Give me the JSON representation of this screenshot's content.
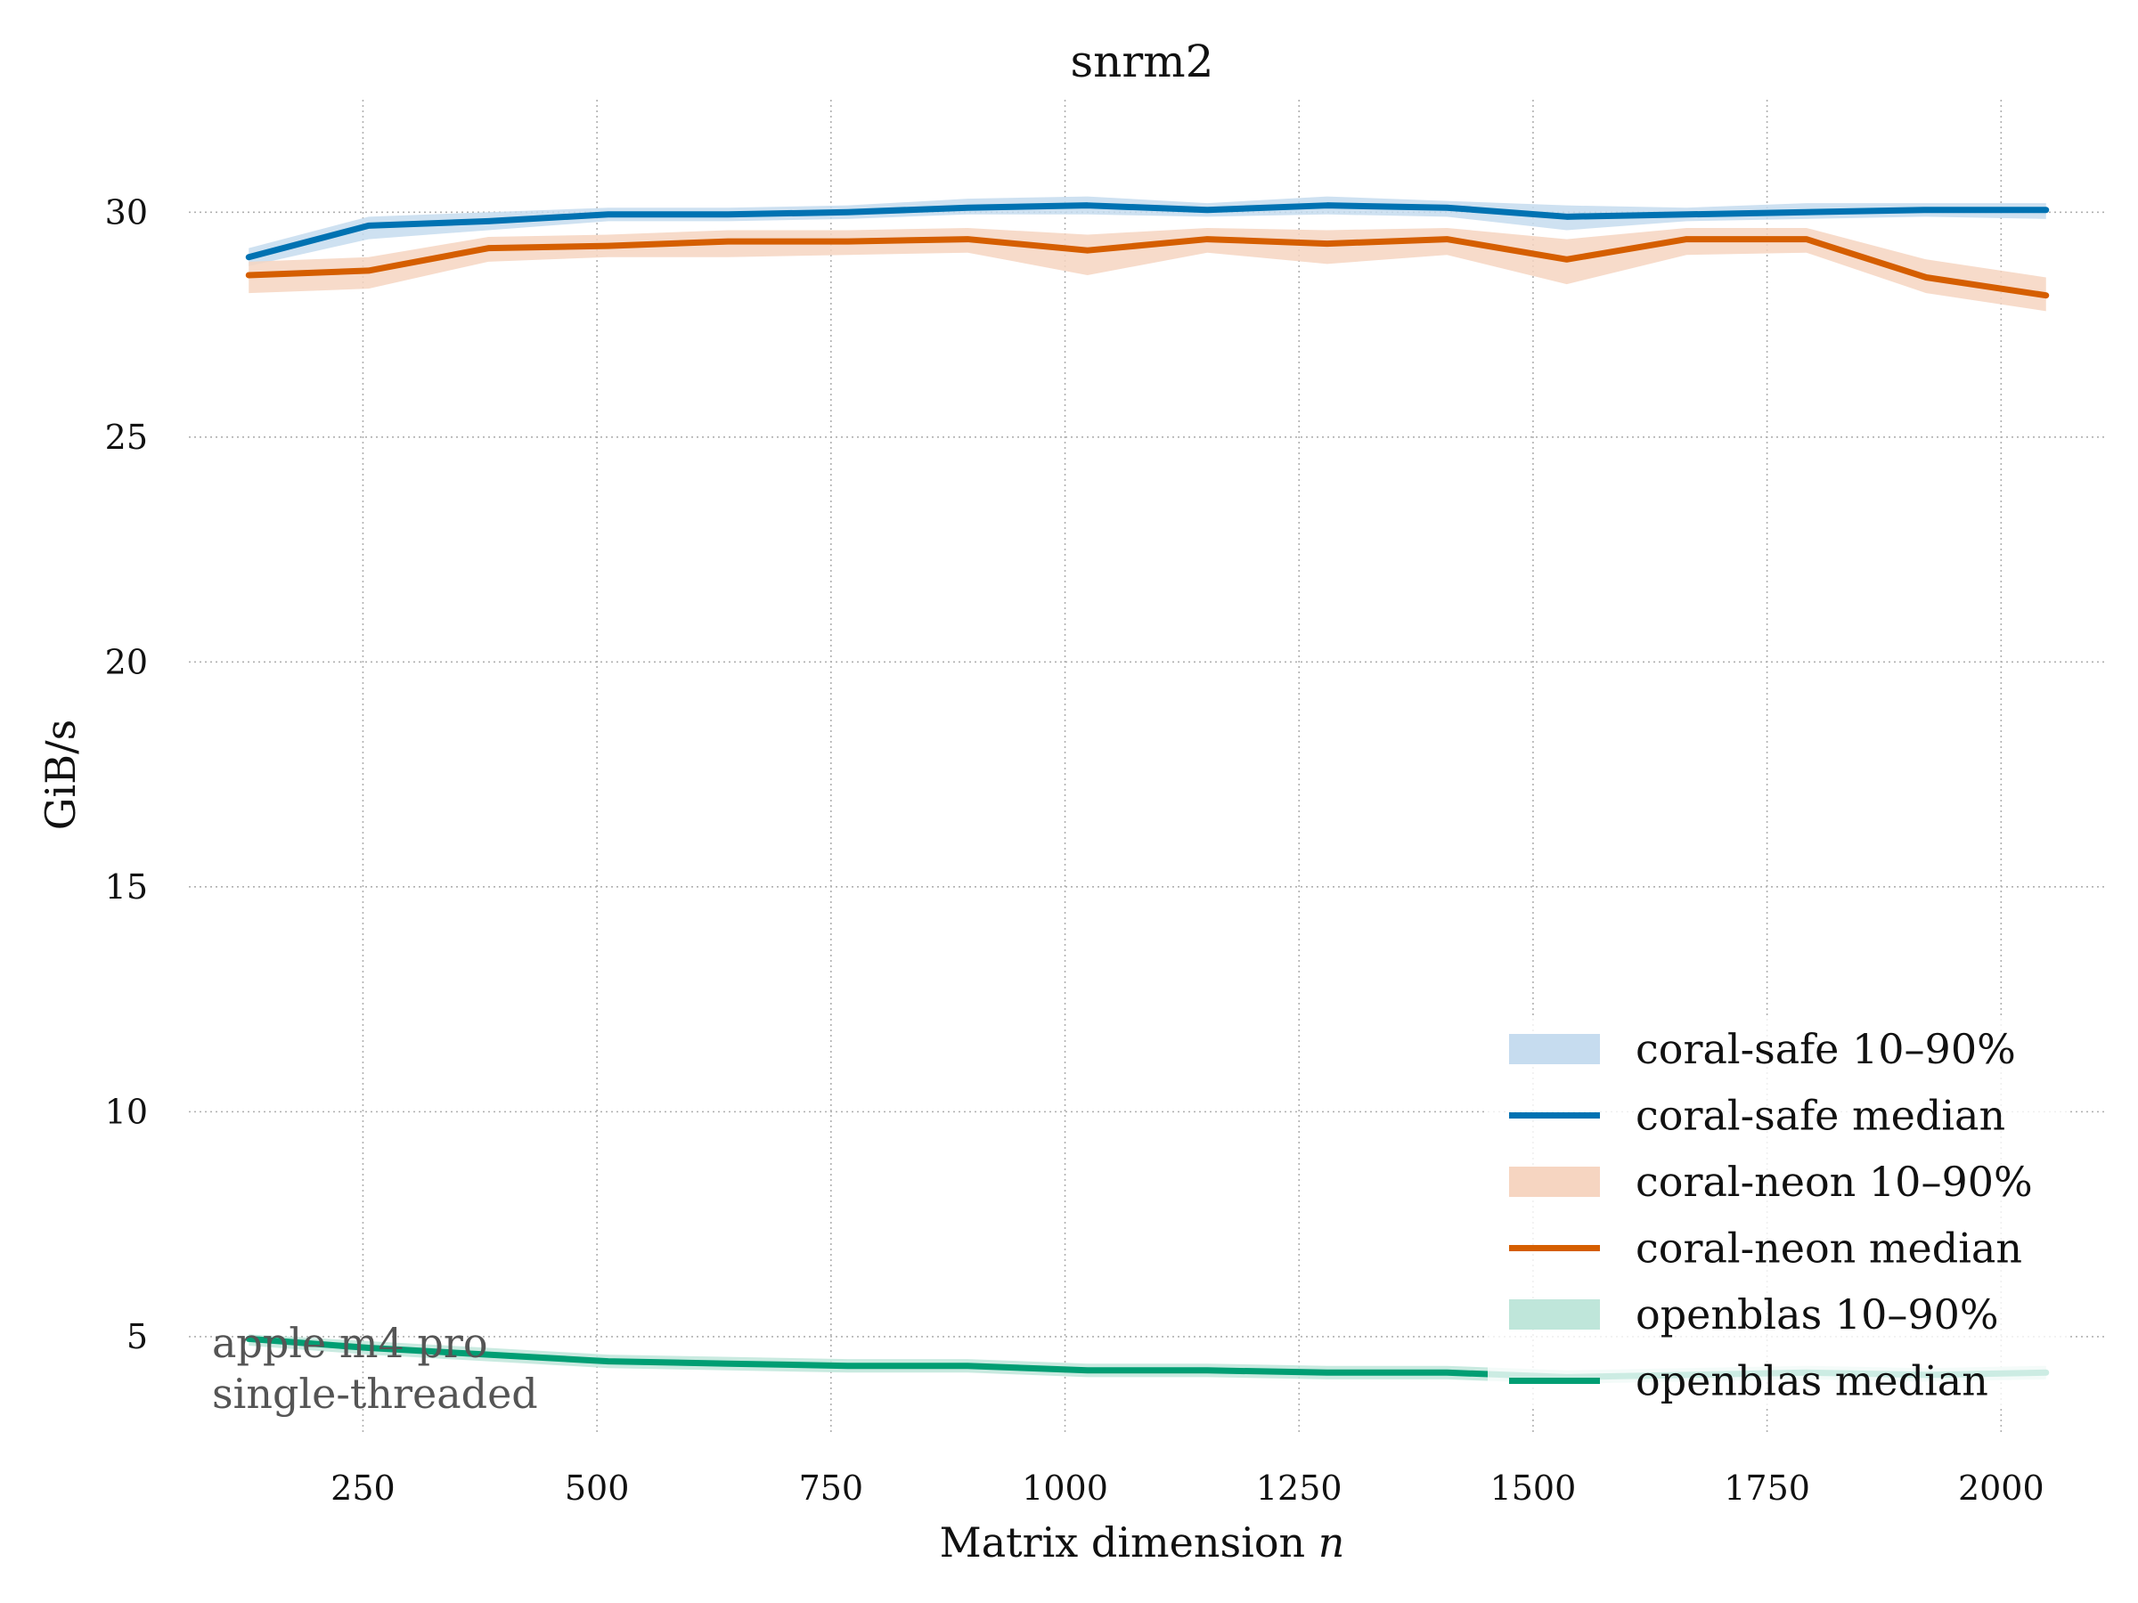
{
  "chart_data": {
    "type": "line",
    "title": "snrm2",
    "xlabel": "Matrix dimension",
    "xlabel_var": "n",
    "ylabel": "GiB/s",
    "xlim": [
      64,
      2112
    ],
    "ylim": [
      2.8,
      32.5
    ],
    "xticks": [
      250,
      500,
      750,
      1000,
      1250,
      1500,
      1750,
      2000
    ],
    "yticks": [
      5,
      10,
      15,
      20,
      25,
      30
    ],
    "grid": true,
    "legend_position": "bottom-right",
    "x": [
      128,
      256,
      384,
      512,
      640,
      768,
      896,
      1024,
      1152,
      1280,
      1408,
      1536,
      1664,
      1792,
      1920,
      2048
    ],
    "series": [
      {
        "name": "coral-safe median",
        "band_name": "coral-safe 10–90%",
        "color": "#0072b2",
        "band_color": "#c6dcef",
        "values": [
          29.0,
          29.7,
          29.8,
          29.95,
          29.95,
          30.0,
          30.1,
          30.15,
          30.05,
          30.15,
          30.1,
          29.9,
          29.95,
          30.0,
          30.05,
          30.05
        ],
        "band_low": [
          28.8,
          29.4,
          29.6,
          29.8,
          29.8,
          29.85,
          29.95,
          29.95,
          29.9,
          29.95,
          29.9,
          29.6,
          29.8,
          29.85,
          29.9,
          29.85
        ],
        "band_high": [
          29.2,
          29.9,
          30.0,
          30.1,
          30.1,
          30.15,
          30.3,
          30.35,
          30.2,
          30.35,
          30.25,
          30.15,
          30.1,
          30.2,
          30.2,
          30.2
        ]
      },
      {
        "name": "coral-neon median",
        "band_name": "coral-neon 10–90%",
        "color": "#d55e00",
        "band_color": "#f6d5c1",
        "values": [
          28.6,
          28.7,
          29.2,
          29.25,
          29.35,
          29.35,
          29.4,
          29.15,
          29.4,
          29.3,
          29.4,
          28.95,
          29.4,
          29.4,
          28.55,
          28.15
        ],
        "band_low": [
          28.2,
          28.3,
          28.9,
          29.0,
          29.0,
          29.05,
          29.1,
          28.6,
          29.1,
          28.85,
          29.05,
          28.4,
          29.05,
          29.1,
          28.2,
          27.8
        ],
        "band_high": [
          28.9,
          29.0,
          29.45,
          29.5,
          29.6,
          29.6,
          29.65,
          29.5,
          29.65,
          29.6,
          29.65,
          29.4,
          29.65,
          29.65,
          28.95,
          28.55
        ]
      },
      {
        "name": "openblas median",
        "band_name": "openblas 10–90%",
        "color": "#009e73",
        "band_color": "#bfe6da",
        "values": [
          4.95,
          4.75,
          4.6,
          4.45,
          4.4,
          4.35,
          4.35,
          4.25,
          4.25,
          4.2,
          4.2,
          4.1,
          4.15,
          4.2,
          4.15,
          4.2
        ],
        "band_low": [
          4.8,
          4.6,
          4.45,
          4.3,
          4.25,
          4.2,
          4.2,
          4.1,
          4.1,
          4.05,
          4.05,
          3.95,
          4.0,
          4.05,
          4.0,
          4.05
        ],
        "band_high": [
          5.05,
          4.9,
          4.75,
          4.6,
          4.55,
          4.5,
          4.5,
          4.4,
          4.4,
          4.35,
          4.35,
          4.25,
          4.3,
          4.35,
          4.3,
          4.35
        ]
      }
    ]
  },
  "annotation": {
    "line1": "apple m4 pro",
    "line2": "single-threaded"
  }
}
